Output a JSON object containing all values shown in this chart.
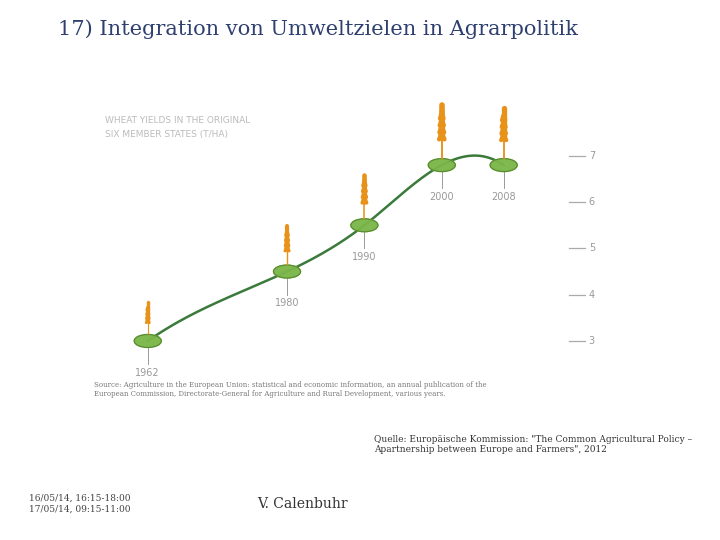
{
  "title": "17) Integration von Umweltzielen in Agrarpolitik",
  "title_color": "#2F4070",
  "title_fontsize": 15,
  "bg_color": "#ffffff",
  "chart_subtitle_line1": "WHEAT YIELDS IN THE ORIGINAL",
  "chart_subtitle_line2": "SIX MEMBER STATES (T/HA)",
  "chart_subtitle_color": "#bbbbbb",
  "chart_subtitle_fontsize": 6.5,
  "years": [
    1962,
    1980,
    1990,
    2000,
    2008
  ],
  "yields": [
    3.0,
    4.5,
    5.5,
    6.8,
    6.8
  ],
  "line_color": "#3a7a3a",
  "dot_color": "#7ab648",
  "dot_edge_color": "#5a8a30",
  "yticks": [
    3,
    4,
    5,
    6,
    7
  ],
  "ytick_color": "#999999",
  "year_label_color": "#999999",
  "year_label_fontsize": 7,
  "wheat_color": "#E8921A",
  "wheat_scales": [
    0.7,
    0.85,
    0.95,
    1.15,
    1.1
  ],
  "source_text": "Source: Agriculture in the European Union: statistical and economic information, an annual publication of the\nEuropean Commission, Directorate-General for Agriculture and Rural Development, various years.",
  "source_fontsize": 5,
  "source_color": "#777777",
  "quelle_text": "Quelle: Europäische Kommission: \"The Common Agricultural Policy –\nApartnership between Europe and Farmers\", 2012",
  "quelle_fontsize": 6.5,
  "quelle_color": "#333333",
  "dates_text": "16/05/14, 16:15-18:00\n17/05/14, 09:15-11:00",
  "dates_fontsize": 6.5,
  "dates_color": "#444444",
  "author_text": "V. Calenbuhr",
  "author_fontsize": 10,
  "author_color": "#333333"
}
